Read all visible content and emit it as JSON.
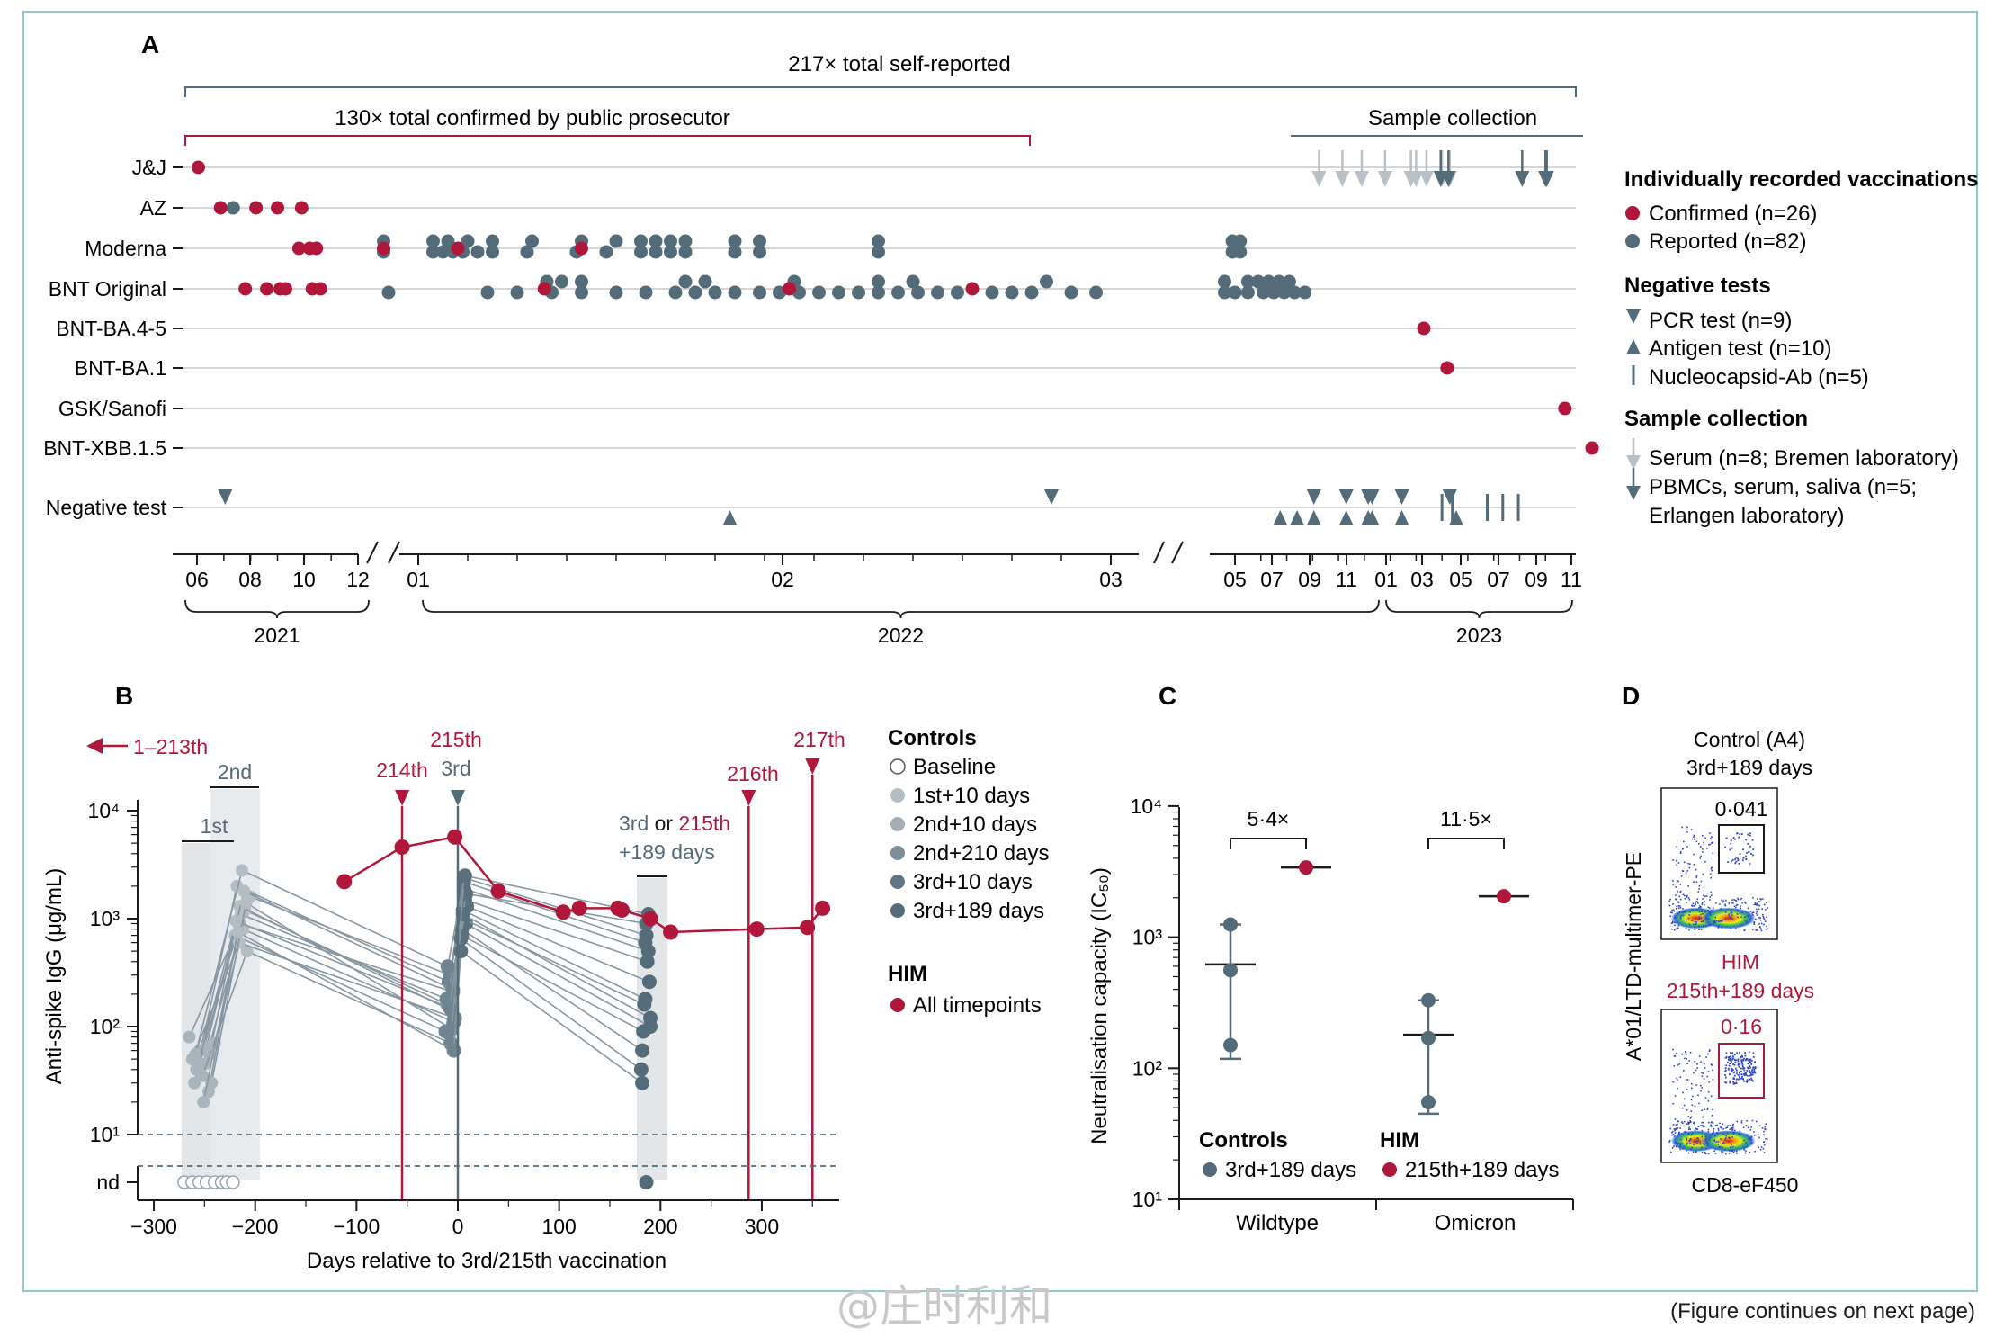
{
  "colors": {
    "him": "#b1173b",
    "ctrl": "#546b79",
    "ctrl_light": "#a9b5bd",
    "serum": "#b9c1c7",
    "frame": "#8ec9cf",
    "grid": "#c8c8c8"
  },
  "watermark": "@庄时利和",
  "continues_note": "(Figure continues on next page)",
  "chart_data": [
    {
      "panel": "A",
      "type": "scatter",
      "panel_label": "A",
      "annotations": {
        "total_self_reported": "217× total self-reported",
        "confirmed": "130× total confirmed by public prosecutor",
        "sample_collection": "Sample collection"
      },
      "rows": [
        "J&J",
        "AZ",
        "Moderna",
        "BNT Original",
        "BNT-BA.4-5",
        "BNT-BA.1",
        "GSK/Sanofi",
        "BNT-XBB.1.5",
        "Negative test"
      ],
      "x_ticks": [
        "06",
        "08",
        "10",
        "12",
        "01",
        "02",
        "03",
        "05",
        "07",
        "09",
        "11",
        "01",
        "03",
        "05",
        "07",
        "09",
        "11"
      ],
      "years": [
        "2021",
        "2022",
        "2023"
      ],
      "confirmed_points": [
        {
          "row": "J&J",
          "x": [
            0.05
          ]
        },
        {
          "row": "AZ",
          "x": [
            0.88,
            2.2,
            3.0,
            3.9
          ]
        },
        {
          "row": "Moderna",
          "x": [
            3.8,
            4.2,
            4.45,
            6.3,
            7.8,
            10.3
          ]
        },
        {
          "row": "BNT Original",
          "x": [
            1.8,
            2.6,
            3.1,
            3.3,
            4.3,
            4.6,
            9.55,
            14.5,
            18.2
          ]
        },
        {
          "row": "BNT-BA.4-5",
          "x": [
            30.3
          ]
        },
        {
          "row": "BNT-BA.1",
          "x": [
            31.2
          ]
        },
        {
          "row": "GSK/Sanofi",
          "x": [
            35.75
          ]
        },
        {
          "row": "BNT-XBB.1.5",
          "x": [
            36.8
          ]
        }
      ],
      "reported_points": [
        {
          "row": "AZ",
          "x": [
            1.35
          ]
        },
        {
          "row": "Moderna",
          "x": [
            6.3,
            7.3,
            7.5,
            7.7,
            7.9,
            8.2,
            8.5,
            9.2,
            10.2,
            10.8,
            11.5,
            11.8,
            12.1,
            12.4,
            13.4,
            13.9,
            16.3,
            22.9,
            23.2
          ]
        },
        {
          "row": "BNT Original",
          "x": [
            6.4,
            8.4,
            9.0,
            9.7,
            10.3,
            11.0,
            11.6,
            12.2,
            12.6,
            13.0,
            13.4,
            13.9,
            14.3,
            14.7,
            15.1,
            15.5,
            15.9,
            16.3,
            16.7,
            17.1,
            17.5,
            17.9,
            18.6,
            19.0,
            19.4,
            20.2,
            20.7,
            22.6,
            23.0,
            23.5,
            24.1,
            24.5,
            24.9,
            25.3,
            25.7
          ]
        },
        {
          "row": "Moderna-upper",
          "x": [
            6.3,
            7.3,
            7.6,
            8.0,
            8.5,
            9.3,
            10.3,
            11.0,
            11.5,
            11.8,
            12.1,
            12.4,
            13.4,
            13.9,
            16.3,
            22.9,
            23.2
          ]
        },
        {
          "row": "BNT Original-upper",
          "x": [
            9.6,
            9.9,
            10.3,
            12.4,
            12.8,
            14.6,
            16.3,
            17.0,
            19.7,
            22.6,
            23.5,
            23.9,
            24.3,
            24.7,
            25.1
          ]
        }
      ],
      "legend": {
        "vacc_title": "Individually recorded vaccinations",
        "confirmed": "Confirmed (n=26)",
        "reported": "Reported (n=82)",
        "neg_title": "Negative tests",
        "pcr": "PCR test (n=9)",
        "antigen": "Antigen test (n=10)",
        "nucleo": "Nucleocapsid-Ab (n=5)",
        "samp_title": "Sample collection",
        "serum": "Serum (n=8; Bremen laboratory)",
        "pbmc1": "PBMCs, serum, saliva (n=5;",
        "pbmc2": "Erlangen laboratory)"
      }
    },
    {
      "panel": "B",
      "type": "line",
      "panel_label": "B",
      "xlabel": "Days relative to 3rd/215th vaccination",
      "ylabel": "Anti-spike IgG (μg/mL)",
      "xlim": [
        -310,
        370
      ],
      "x_ticks": [
        -300,
        -200,
        -100,
        0,
        100,
        200,
        300
      ],
      "y_scale": "log",
      "y_ticks": [
        "10¹",
        "10²",
        "10³",
        "10⁴"
      ],
      "nd_label": "nd",
      "arrow_label": "1–213th",
      "vax_labels": {
        "v214": "214th",
        "v215": "215th",
        "v216": "216th",
        "v217": "217th",
        "c3": "3rd",
        "c1": "1st",
        "c2": "2nd"
      },
      "box_label": {
        "a": "3rd",
        "b": " or ",
        "c": "215th",
        "d": "+189 days"
      },
      "him_series": {
        "name": "HIM",
        "x": [
          -112,
          -55,
          -3,
          40,
          104,
          120,
          158,
          162,
          190,
          210,
          295,
          345,
          360
        ],
        "y": [
          2200,
          4600,
          5700,
          1800,
          1150,
          1250,
          1250,
          1200,
          1000,
          750,
          800,
          830,
          1250
        ]
      },
      "legend": {
        "controls_title": "Controls",
        "items": [
          "Baseline",
          "1st+10 days",
          "2nd+10 days",
          "2nd+210 days",
          "3rd+10 days",
          "3rd+189 days"
        ],
        "him_title": "HIM",
        "him_item": "All timepoints"
      }
    },
    {
      "panel": "C",
      "type": "scatter",
      "panel_label": "C",
      "ylabel": "Neutralisation capacity (IC₅₀)",
      "y_scale": "log",
      "y_ticks": [
        "10¹",
        "10²",
        "10³",
        "10⁴"
      ],
      "categories": [
        "Wildtype",
        "Omicron"
      ],
      "controls": {
        "Wildtype": [
          1250,
          560,
          150
        ],
        "Omicron": [
          330,
          170,
          55
        ],
        "mean": [
          620,
          180
        ],
        "range_low": [
          118,
          45
        ],
        "range_high": [
          1250,
          330
        ]
      },
      "him": {
        "Wildtype": [
          3400
        ],
        "Omicron": [
          2050
        ]
      },
      "fold_labels": [
        "5·4×",
        "11·5×"
      ],
      "legend": {
        "controls_title": "Controls",
        "controls_item": "3rd+189 days",
        "him_title": "HIM",
        "him_item": "215th+189 days"
      }
    },
    {
      "panel": "D",
      "type": "scatter",
      "panel_label": "D",
      "ylabel": "A*01/LTD-multimer-PE",
      "xlabel": "CD8-eF450",
      "top_title1": "Control (A4)",
      "top_title2": "3rd+189 days",
      "top_value": "0·041",
      "bottom_title1": "HIM",
      "bottom_title2": "215th+189 days",
      "bottom_value": "0·16"
    }
  ]
}
